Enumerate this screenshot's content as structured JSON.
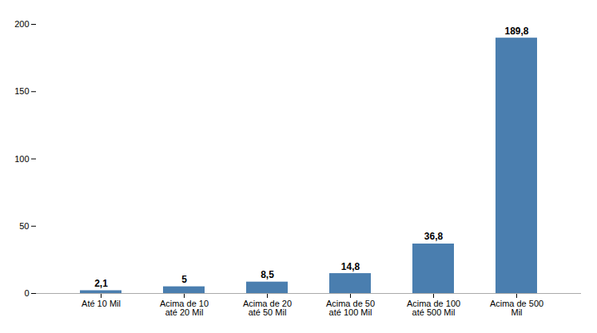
{
  "chart_data": {
    "type": "bar",
    "categories": [
      "Até 10 Mil",
      "Acima de 10\naté 20 Mil",
      "Acima de 20\naté 50 Mil",
      "Acima de 50\naté 100 Mil",
      "Acima de 100\naté 500 Mil",
      "Acima de 500\nMil"
    ],
    "values": [
      2.1,
      5.0,
      8.5,
      14.8,
      36.8,
      189.8
    ],
    "value_labels": [
      "2,1",
      "5",
      "8,5",
      "14,8",
      "36,8",
      "189,8"
    ],
    "data_labels": true,
    "color": "#4a7eaf",
    "ylim": [
      0,
      200
    ],
    "yticks": [
      0,
      50,
      100,
      150,
      200
    ],
    "grid": false
  }
}
